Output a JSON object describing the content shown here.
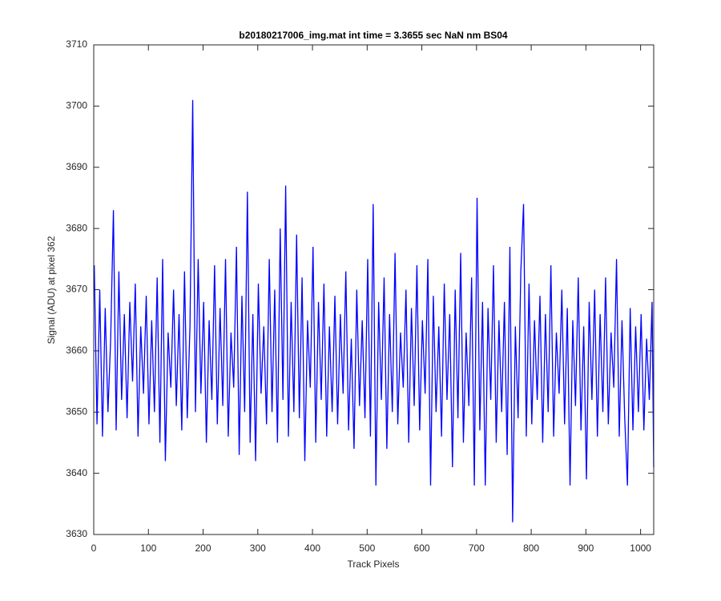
{
  "chart_data": {
    "type": "line",
    "title": "b20180217006_img.mat int time = 3.3655 sec  NaN nm BS04",
    "x_label": "Track Pixels",
    "y_label": "Signal (ADU) at pixel 362",
    "xlim": [
      0,
      1024
    ],
    "ylim": [
      3630,
      3710
    ],
    "xticks": [
      0,
      100,
      200,
      300,
      400,
      500,
      600,
      700,
      800,
      900,
      1000
    ],
    "yticks": [
      3630,
      3640,
      3650,
      3660,
      3670,
      3680,
      3690,
      3700,
      3710
    ],
    "grid": false,
    "x": [
      1,
      6,
      11,
      16,
      21,
      26,
      31,
      36,
      41,
      46,
      51,
      56,
      61,
      66,
      71,
      76,
      81,
      86,
      91,
      96,
      101,
      106,
      111,
      116,
      121,
      126,
      131,
      136,
      141,
      146,
      151,
      156,
      161,
      166,
      171,
      176,
      181,
      186,
      191,
      196,
      201,
      206,
      211,
      216,
      221,
      226,
      231,
      236,
      241,
      246,
      251,
      256,
      261,
      266,
      271,
      276,
      281,
      286,
      291,
      296,
      301,
      306,
      311,
      316,
      321,
      326,
      331,
      336,
      341,
      346,
      351,
      356,
      361,
      366,
      371,
      376,
      381,
      386,
      391,
      396,
      401,
      406,
      411,
      416,
      421,
      426,
      431,
      436,
      441,
      446,
      451,
      456,
      461,
      466,
      471,
      476,
      481,
      486,
      491,
      496,
      501,
      506,
      511,
      516,
      521,
      526,
      531,
      536,
      541,
      546,
      551,
      556,
      561,
      566,
      571,
      576,
      581,
      586,
      591,
      596,
      601,
      606,
      611,
      616,
      621,
      626,
      631,
      636,
      641,
      646,
      651,
      656,
      661,
      666,
      671,
      676,
      681,
      686,
      691,
      696,
      701,
      706,
      711,
      716,
      721,
      726,
      731,
      736,
      741,
      746,
      751,
      756,
      761,
      766,
      771,
      776,
      781,
      786,
      791,
      796,
      801,
      806,
      811,
      816,
      821,
      826,
      831,
      836,
      841,
      846,
      851,
      856,
      861,
      866,
      871,
      876,
      881,
      886,
      891,
      896,
      901,
      906,
      911,
      916,
      921,
      926,
      931,
      936,
      941,
      946,
      951,
      956,
      961,
      966,
      971,
      976,
      981,
      986,
      991,
      996,
      1001,
      1006,
      1011,
      1016,
      1021,
      1024
    ],
    "series": [
      {
        "color": "#0000ff",
        "values": [
          3674,
          3648,
          3670,
          3646,
          3667,
          3650,
          3662,
          3683,
          3647,
          3673,
          3652,
          3666,
          3649,
          3668,
          3655,
          3671,
          3646,
          3664,
          3653,
          3669,
          3648,
          3665,
          3650,
          3672,
          3645,
          3675,
          3642,
          3663,
          3654,
          3670,
          3651,
          3666,
          3647,
          3673,
          3649,
          3664,
          3701,
          3650,
          3675,
          3653,
          3668,
          3645,
          3665,
          3652,
          3674,
          3648,
          3667,
          3651,
          3675,
          3646,
          3663,
          3654,
          3677,
          3643,
          3669,
          3650,
          3686,
          3645,
          3666,
          3642,
          3671,
          3653,
          3664,
          3648,
          3675,
          3650,
          3670,
          3645,
          3680,
          3652,
          3687,
          3646,
          3668,
          3650,
          3679,
          3649,
          3672,
          3642,
          3665,
          3654,
          3677,
          3645,
          3668,
          3652,
          3671,
          3646,
          3664,
          3650,
          3669,
          3648,
          3666,
          3653,
          3673,
          3647,
          3662,
          3644,
          3670,
          3651,
          3665,
          3649,
          3675,
          3646,
          3684,
          3638,
          3668,
          3652,
          3672,
          3644,
          3666,
          3650,
          3676,
          3648,
          3663,
          3654,
          3670,
          3645,
          3667,
          3651,
          3674,
          3647,
          3665,
          3653,
          3675,
          3638,
          3669,
          3650,
          3664,
          3646,
          3671,
          3652,
          3666,
          3641,
          3670,
          3649,
          3676,
          3645,
          3663,
          3651,
          3672,
          3638,
          3685,
          3647,
          3668,
          3638,
          3667,
          3652,
          3674,
          3645,
          3665,
          3650,
          3668,
          3643,
          3677,
          3632,
          3664,
          3649,
          3673,
          3684,
          3646,
          3671,
          3648,
          3665,
          3652,
          3669,
          3645,
          3666,
          3650,
          3674,
          3646,
          3663,
          3653,
          3670,
          3648,
          3667,
          3638,
          3665,
          3651,
          3672,
          3647,
          3664,
          3639,
          3668,
          3652,
          3670,
          3646,
          3666,
          3650,
          3672,
          3648,
          3663,
          3654,
          3675,
          3646,
          3665,
          3649,
          3638,
          3667,
          3647,
          3664,
          3650,
          3666,
          3647,
          3662,
          3652,
          3668,
          3641
        ]
      }
    ]
  }
}
